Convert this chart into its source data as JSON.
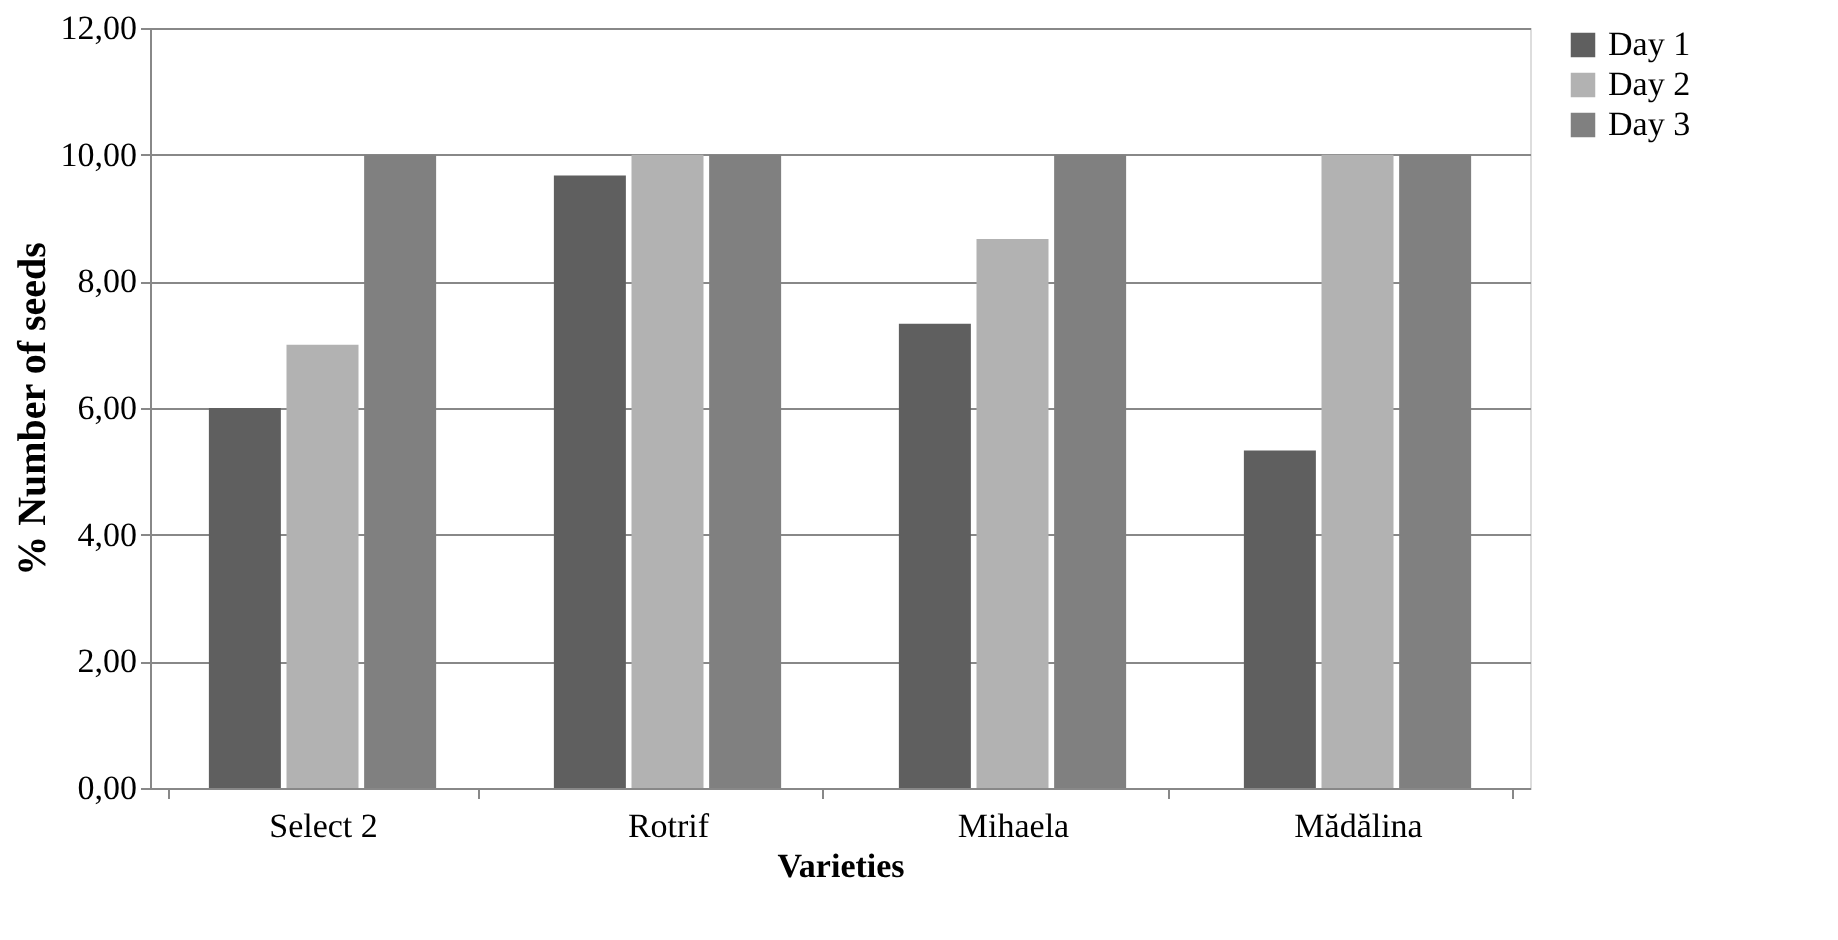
{
  "chart_data": {
    "type": "bar",
    "xlabel": "Varieties",
    "ylabel": "% Number of seeds",
    "categories": [
      "Select 2",
      "Rotrif",
      "Mihaela",
      "Mădălina"
    ],
    "series": [
      {
        "name": "Day 1",
        "color": "#5f5f5f",
        "values": [
          6.0,
          9.67,
          7.33,
          5.33
        ]
      },
      {
        "name": "Day 2",
        "color": "#b2b2b2",
        "values": [
          7.0,
          10.0,
          8.67,
          10.0
        ]
      },
      {
        "name": "Day 3",
        "color": "#808080",
        "values": [
          10.0,
          10.0,
          10.0,
          10.0
        ]
      }
    ],
    "ylim": [
      0,
      12
    ],
    "yticks": [
      {
        "value": 0,
        "label": "0,00"
      },
      {
        "value": 2,
        "label": "2,00"
      },
      {
        "value": 4,
        "label": "4,00"
      },
      {
        "value": 6,
        "label": "6,00"
      },
      {
        "value": 8,
        "label": "8,00"
      },
      {
        "value": 10,
        "label": "10,00"
      },
      {
        "value": 12,
        "label": "12,00"
      }
    ],
    "grid": "y",
    "legend": "right"
  }
}
